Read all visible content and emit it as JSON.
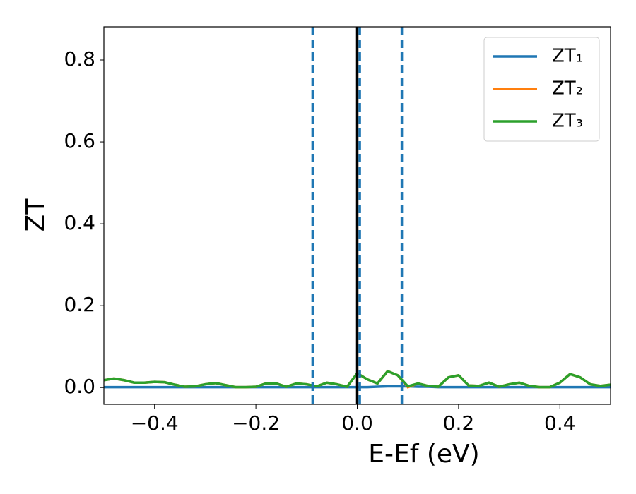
{
  "chart_data": {
    "type": "line",
    "xlabel": "E-Ef (eV)",
    "ylabel": "ZT",
    "xlim": [
      -0.5,
      0.5
    ],
    "ylim": [
      -0.041,
      0.881
    ],
    "xticks": [
      {
        "value": -0.4,
        "label": "−0.4"
      },
      {
        "value": -0.2,
        "label": "−0.2"
      },
      {
        "value": 0,
        "label": "0.0"
      },
      {
        "value": 0.2,
        "label": "0.2"
      },
      {
        "value": 0.4,
        "label": "0.4"
      }
    ],
    "yticks": [
      {
        "value": 0,
        "label": "0.0"
      },
      {
        "value": 0.2,
        "label": "0.2"
      },
      {
        "value": 0.4,
        "label": "0.4"
      },
      {
        "value": 0.6,
        "label": "0.6"
      },
      {
        "value": 0.8,
        "label": "0.8"
      }
    ],
    "legend": "upper right",
    "x": [
      -0.5,
      -0.48,
      -0.46,
      -0.44,
      -0.42,
      -0.4,
      -0.38,
      -0.36,
      -0.34,
      -0.32,
      -0.3,
      -0.28,
      -0.26,
      -0.24,
      -0.22,
      -0.2,
      -0.18,
      -0.16,
      -0.14,
      -0.12,
      -0.1,
      -0.08,
      -0.06,
      -0.04,
      -0.02,
      0,
      0.02,
      0.04,
      0.06,
      0.08,
      0.1,
      0.12,
      0.14,
      0.16,
      0.18,
      0.2,
      0.22,
      0.24,
      0.26,
      0.28,
      0.3,
      0.32,
      0.34,
      0.36,
      0.38,
      0.4,
      0.42,
      0.44,
      0.46,
      0.48,
      0.5
    ],
    "series": [
      {
        "name": "ZT₁",
        "color": "#1f77b4",
        "values": [
          0.001,
          0.001,
          0.001,
          0.001,
          0.001,
          0.001,
          0.001,
          0.001,
          0.001,
          0.001,
          0.001,
          0.001,
          0.001,
          0.001,
          0.001,
          0.001,
          0.001,
          0.001,
          0.001,
          0.001,
          0.001,
          0.001,
          0.001,
          0.001,
          0.001,
          0.001,
          0.001,
          0.002,
          0.003,
          0.003,
          0.003,
          0.002,
          0.002,
          0.001,
          0.001,
          0.001,
          0.001,
          0.001,
          0.001,
          0.001,
          0.001,
          0.001,
          0.001,
          0.001,
          0.001,
          0.001,
          0.001,
          0.001,
          0.001,
          0.001,
          0.001
        ]
      },
      {
        "name": "ZT₂",
        "color": "#ff7f0e",
        "values": [
          0.018,
          0.022,
          0.018,
          0.012,
          0.012,
          0.014,
          0.013,
          0.007,
          0.002,
          0.003,
          0.008,
          0.011,
          0.006,
          0.001,
          0.001,
          0.002,
          0.01,
          0.01,
          0.002,
          0.01,
          0.008,
          0.003,
          0.012,
          0.008,
          0.002,
          0.035,
          0.02,
          0.01,
          0.04,
          0.03,
          0.001,
          0.01,
          0.004,
          0.002,
          0.025,
          0.03,
          0.005,
          0.004,
          0.012,
          0.002,
          0.008,
          0.012,
          0.004,
          0.001,
          0.001,
          0.012,
          0.033,
          0.025,
          0.008,
          0.004,
          0.007
        ]
      },
      {
        "name": "ZT₃",
        "color": "#2ca02c",
        "values": [
          0.018,
          0.022,
          0.018,
          0.012,
          0.012,
          0.014,
          0.013,
          0.007,
          0.002,
          0.003,
          0.008,
          0.011,
          0.006,
          0.001,
          0.001,
          0.002,
          0.01,
          0.01,
          0.002,
          0.01,
          0.008,
          0.003,
          0.012,
          0.008,
          0.002,
          0.035,
          0.02,
          0.01,
          0.04,
          0.03,
          0.003,
          0.01,
          0.004,
          0.002,
          0.025,
          0.03,
          0.005,
          0.004,
          0.012,
          0.002,
          0.008,
          0.012,
          0.004,
          0.001,
          0.001,
          0.012,
          0.033,
          0.025,
          0.008,
          0.004,
          0.007
        ]
      }
    ],
    "vlines": [
      {
        "x": -0.088,
        "color": "#1f77b4",
        "style": "dashed"
      },
      {
        "x": 0,
        "color": "#000000",
        "style": "solid"
      },
      {
        "x": 0.005,
        "color": "#1f77b4",
        "style": "dashed"
      },
      {
        "x": 0.088,
        "color": "#1f77b4",
        "style": "dashed"
      }
    ]
  }
}
